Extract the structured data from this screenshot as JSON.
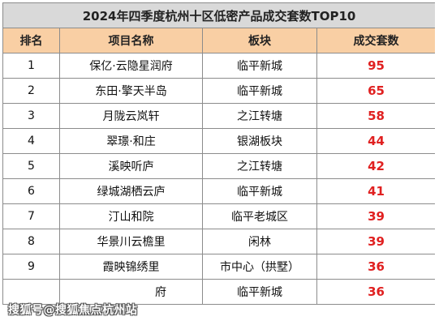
{
  "table": {
    "title": "2024年四季度杭州十区低密产品成交套数TOP10",
    "headers": {
      "rank": "排名",
      "name": "项目名称",
      "block": "板块",
      "count": "成交套数"
    },
    "rows": [
      {
        "rank": "1",
        "name": "保亿·云隐星润府",
        "block": "临平新城",
        "count": "95"
      },
      {
        "rank": "2",
        "name": "东田·擎天半岛",
        "block": "临平新城",
        "count": "65"
      },
      {
        "rank": "3",
        "name": "月陇云岚轩",
        "block": "之江转塘",
        "count": "58"
      },
      {
        "rank": "4",
        "name": "翠璟·和庄",
        "block": "银湖板块",
        "count": "44"
      },
      {
        "rank": "5",
        "name": "溪映听庐",
        "block": "之江转塘",
        "count": "42"
      },
      {
        "rank": "6",
        "name": "绿城湖栖云庐",
        "block": "临平新城",
        "count": "41"
      },
      {
        "rank": "7",
        "name": "汀山和院",
        "block": "临平老城区",
        "count": "39"
      },
      {
        "rank": "8",
        "name": "华景川云檐里",
        "block": "闲林",
        "count": "39"
      },
      {
        "rank": "9",
        "name": "霞映锦绣里",
        "block": "市中心（拱墅）",
        "count": "36"
      },
      {
        "rank": "",
        "name": "府",
        "block": "临平新城",
        "count": "36"
      }
    ]
  },
  "watermark": "搜狐号@搜狐焦点杭州站",
  "colors": {
    "title_bg": "#d9d9d9",
    "header_bg": "#f9cfa4",
    "count_text": "#e02020",
    "border": "#8c8c8c"
  }
}
